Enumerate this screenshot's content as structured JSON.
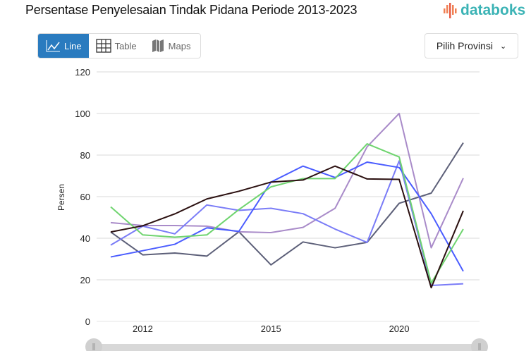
{
  "header": {
    "title": "Persentase Penyelesaian Tindak Pidana Periode 2013-2023",
    "logo_text": "databoks"
  },
  "view_tabs": [
    {
      "label": "Line",
      "icon": "line-chart-icon",
      "active": true
    },
    {
      "label": "Table",
      "icon": "table-grid-icon",
      "active": false
    },
    {
      "label": "Maps",
      "icon": "map-icon",
      "active": false
    }
  ],
  "province_select": {
    "label": "Pilih Provinsi",
    "icon": "chevron-down-icon"
  },
  "colors": {
    "accent": "#2a7bbf",
    "logo": "#3bb3b5"
  },
  "chart_data": {
    "type": "line",
    "title": "",
    "xlabel": "",
    "ylabel": "Persen",
    "ylim": [
      0,
      120
    ],
    "yticks": [
      "0",
      "20",
      "40",
      "60",
      "80",
      "100",
      "120"
    ],
    "point_count": 12,
    "x_tick_labels": [
      {
        "index": 1,
        "label": "2012"
      },
      {
        "index": 5,
        "label": "2015"
      },
      {
        "index": 9,
        "label": "2020"
      }
    ],
    "grid": true,
    "legend": "none",
    "series": [
      {
        "color": "#5d6079",
        "values": [
          43,
          32,
          32.9,
          31.4,
          43.1,
          27.2,
          38.2,
          35.4,
          38,
          56.8,
          61.7,
          85.9
        ]
      },
      {
        "color": "#a98bc9",
        "values": [
          47.5,
          46.1,
          46.1,
          45.8,
          43.1,
          42.7,
          45.2,
          54.4,
          84,
          100,
          35.4,
          68.9
        ]
      },
      {
        "color": "#7a7cf7",
        "values": [
          36.7,
          45.8,
          42.1,
          56,
          53.4,
          54.4,
          51.8,
          44.4,
          38,
          77.2,
          17.3,
          18.1
        ]
      },
      {
        "color": "#4a5cff",
        "values": [
          31,
          34,
          37.1,
          45,
          43.3,
          67,
          74.7,
          69.2,
          76.6,
          74,
          51.8,
          24.1
        ]
      },
      {
        "color": "#6fd46f",
        "values": [
          55.1,
          41.6,
          40.5,
          41.6,
          53.8,
          64.7,
          68.7,
          68.7,
          85.4,
          79.1,
          18.4,
          44.4
        ]
      },
      {
        "color": "#2b1010",
        "values": [
          43,
          46,
          51.7,
          58.9,
          62.6,
          67,
          68,
          74.7,
          68.5,
          68.3,
          16.2,
          53.2
        ]
      }
    ]
  }
}
